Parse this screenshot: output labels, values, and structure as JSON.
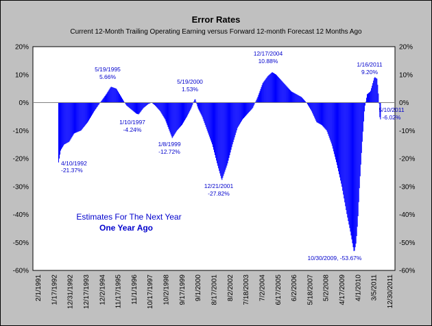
{
  "chart_data": {
    "type": "bar",
    "title": "Error Rates",
    "subtitle": "Current 12-Month Trailing Operating Earning versus Forward 12-month Forecast 12 Months Ago",
    "y_tick_labels": [
      "20%",
      "10%",
      "0%",
      "-10%",
      "-20%",
      "-30%",
      "-40%",
      "-50%",
      "-60%"
    ],
    "ylim": [
      -60,
      20
    ],
    "x_tick_labels": [
      "2/1/1991",
      "1/17/1992",
      "12/31/1992",
      "12/17/1993",
      "12/2/1994",
      "11/17/1995",
      "11/1/1996",
      "10/17/1997",
      "10/2/1998",
      "9/17/1999",
      "9/1/2000",
      "8/17/2001",
      "8/2/2002",
      "7/18/2003",
      "7/2/2004",
      "6/17/2005",
      "6/2/2006",
      "5/18/2007",
      "5/2/2008",
      "4/17/2009",
      "4/1/2010",
      "3/5/2011",
      "12/30/2011"
    ],
    "colors": {
      "bars": "#0000ff",
      "plot_bg": "#ffffff",
      "frame_bg": "#c0c0c0",
      "zero_line": "#808080",
      "annotation": "#0000cc"
    },
    "annotations": [
      {
        "date": "4/10/1992",
        "value": "-21.37%"
      },
      {
        "date": "5/19/1995",
        "value": "5.66%"
      },
      {
        "date": "1/10/1997",
        "value": "-4.24%"
      },
      {
        "date": "1/8/1999",
        "value": "-12.72%"
      },
      {
        "date": "5/19/2000",
        "value": "1.53%"
      },
      {
        "date": "12/21/2001",
        "value": "-27.82%"
      },
      {
        "date": "12/17/2004",
        "value": "10.88%"
      },
      {
        "date": "10/30/2009, -53.67%",
        "value": ""
      },
      {
        "date": "1/16/2011",
        "value": "9.20%"
      },
      {
        "date": "5/10/2011",
        "value": "-6.02%"
      }
    ],
    "note_line1": "Estimates For The Next Year",
    "note_line2": "One Year Ago",
    "series_keypoints": [
      [
        1992.27,
        -21.4
      ],
      [
        1992.4,
        -17
      ],
      [
        1992.6,
        -15
      ],
      [
        1992.9,
        -14
      ],
      [
        1993.2,
        -11
      ],
      [
        1993.6,
        -10
      ],
      [
        1994.0,
        -7
      ],
      [
        1994.4,
        -3
      ],
      [
        1994.8,
        0.5
      ],
      [
        1995.1,
        3
      ],
      [
        1995.38,
        5.7
      ],
      [
        1995.7,
        5
      ],
      [
        1996.0,
        2
      ],
      [
        1996.3,
        -1
      ],
      [
        1996.6,
        -2.5
      ],
      [
        1996.9,
        -4
      ],
      [
        1997.03,
        -4.2
      ],
      [
        1997.3,
        -2
      ],
      [
        1997.6,
        -0.5
      ],
      [
        1997.8,
        0
      ],
      [
        1998.0,
        -1
      ],
      [
        1998.3,
        -3
      ],
      [
        1998.6,
        -6
      ],
      [
        1998.85,
        -10
      ],
      [
        1999.02,
        -12.7
      ],
      [
        1999.3,
        -10
      ],
      [
        1999.6,
        -8
      ],
      [
        1999.9,
        -5
      ],
      [
        2000.15,
        -2
      ],
      [
        2000.38,
        1.5
      ],
      [
        2000.55,
        -2
      ],
      [
        2000.8,
        -5
      ],
      [
        2001.1,
        -10
      ],
      [
        2001.4,
        -15
      ],
      [
        2001.7,
        -22
      ],
      [
        2001.97,
        -27.8
      ],
      [
        2002.3,
        -22
      ],
      [
        2002.6,
        -15
      ],
      [
        2002.9,
        -9
      ],
      [
        2003.2,
        -6
      ],
      [
        2003.5,
        -4
      ],
      [
        2003.8,
        -2
      ],
      [
        2004.1,
        2
      ],
      [
        2004.4,
        7
      ],
      [
        2004.7,
        9.5
      ],
      [
        2004.96,
        10.9
      ],
      [
        2005.2,
        10
      ],
      [
        2005.5,
        8
      ],
      [
        2005.8,
        6
      ],
      [
        2006.1,
        4
      ],
      [
        2006.4,
        3
      ],
      [
        2006.7,
        2
      ],
      [
        2007.0,
        0
      ],
      [
        2007.3,
        -3
      ],
      [
        2007.6,
        -7
      ],
      [
        2007.9,
        -8
      ],
      [
        2008.2,
        -10
      ],
      [
        2008.5,
        -15
      ],
      [
        2008.8,
        -22
      ],
      [
        2009.1,
        -30
      ],
      [
        2009.4,
        -40
      ],
      [
        2009.6,
        -46
      ],
      [
        2009.83,
        -53.7
      ],
      [
        2009.95,
        -50
      ],
      [
        2010.05,
        -42
      ],
      [
        2010.15,
        -30
      ],
      [
        2010.3,
        -15
      ],
      [
        2010.45,
        -2
      ],
      [
        2010.6,
        3
      ],
      [
        2010.8,
        4
      ],
      [
        2011.04,
        9.2
      ],
      [
        2011.2,
        8.5
      ],
      [
        2011.3,
        1
      ],
      [
        2011.36,
        -6.0
      ],
      [
        2011.42,
        -6.0
      ]
    ]
  }
}
